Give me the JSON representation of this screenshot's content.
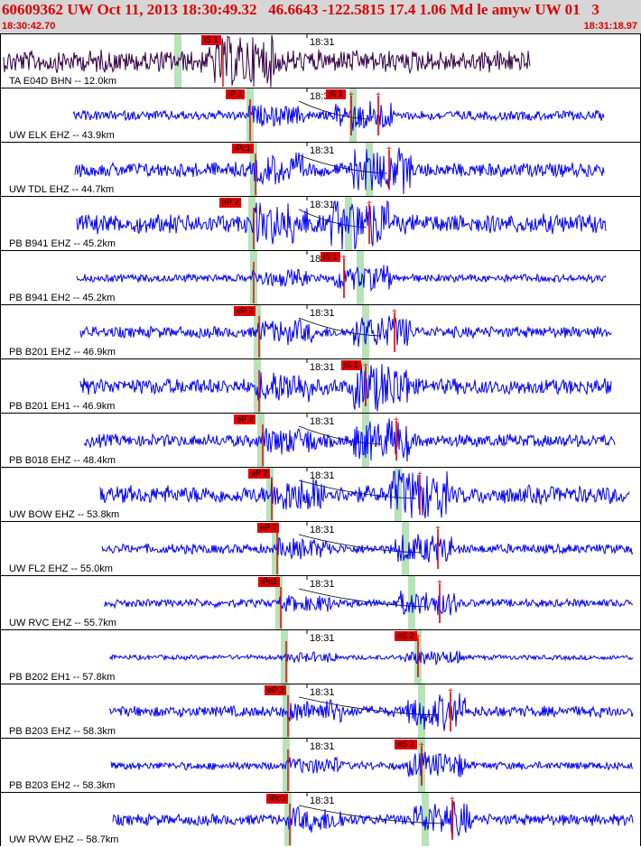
{
  "header": {
    "title": "60609362 UW Oct 11, 2013 18:30:49.32   46.6643 -122.5815 17.4 1.06 Md le amyw UW 01   3",
    "time_start": "18:30:42.70",
    "time_end": "18:31:18.97"
  },
  "colors": {
    "header_bg": "#d6d6d6",
    "title_red": "#e00000",
    "trace_blue": "#0000ff",
    "trace_purple": "#330044",
    "pick_red": "#e00000",
    "phase_window_green": "#b8e2b8"
  },
  "minute_label": "18:31",
  "traces": [
    {
      "station": "TA E04D BHN -- 12.0km",
      "picks": [
        "iS 1"
      ],
      "color": "#330044"
    },
    {
      "station": "UW ELK EHZ -- 43.9km",
      "picks": [
        "iP 1",
        "iS 1"
      ],
      "color": "#0000ff"
    },
    {
      "station": "UW TDL EHZ -- 44.7km",
      "picks": [
        "iPc1"
      ],
      "color": "#0000ff"
    },
    {
      "station": "PB B941 EHZ -- 45.2km",
      "picks": [
        "eP 2"
      ],
      "color": "#0000ff"
    },
    {
      "station": "PB B941 EH2 -- 45.2km",
      "picks": [
        "iS 1"
      ],
      "color": "#0000ff"
    },
    {
      "station": "PB B201 EHZ -- 46.9km",
      "picks": [
        "eP 2"
      ],
      "color": "#0000ff"
    },
    {
      "station": "PB B201 EH1 -- 46.9km",
      "picks": [
        "iS 1"
      ],
      "color": "#0000ff"
    },
    {
      "station": "PB B018 EHZ -- 48.4km",
      "picks": [
        "eP 2"
      ],
      "color": "#0000ff"
    },
    {
      "station": "UW BOW EHZ -- 53.8km",
      "picks": [
        "eP 2"
      ],
      "color": "#0000ff"
    },
    {
      "station": "UW FL2 EHZ -- 55.0km",
      "picks": [
        "eP 2"
      ],
      "color": "#0000ff"
    },
    {
      "station": "UW RVC EHZ -- 55.7km",
      "picks": [
        "iPd1"
      ],
      "color": "#0000ff"
    },
    {
      "station": "PB B202 EH1 -- 57.8km",
      "picks": [
        "eS 2"
      ],
      "color": "#0000ff"
    },
    {
      "station": "PB B203 EHZ -- 58.3km",
      "picks": [
        "eP 2"
      ],
      "color": "#0000ff"
    },
    {
      "station": "PB B203 EH2 -- 58.3km",
      "picks": [
        "eS 2"
      ],
      "color": "#0000ff"
    },
    {
      "station": "UW RVW EHZ -- 58.7km",
      "picks": [
        "iPc0"
      ],
      "color": "#0000ff"
    }
  ]
}
